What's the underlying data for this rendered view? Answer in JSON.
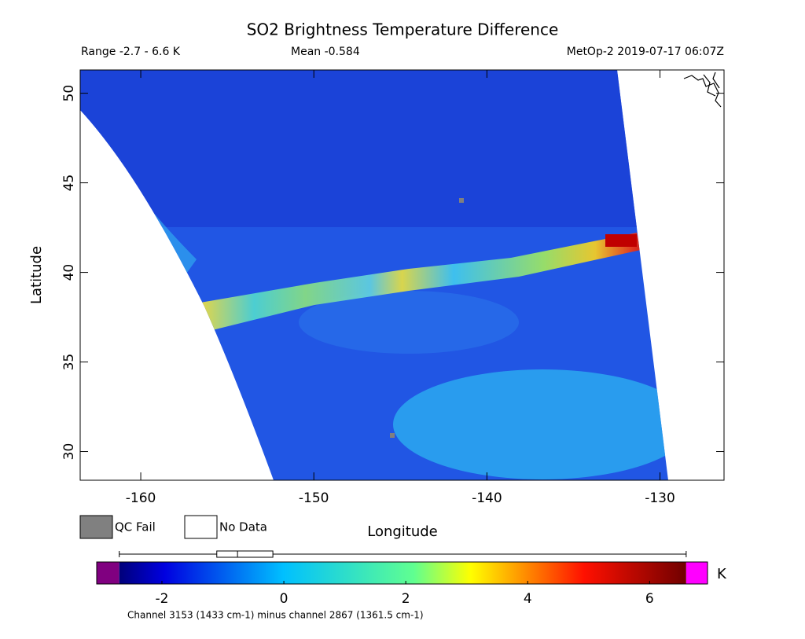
{
  "title": "SO2 Brightness Temperature Difference",
  "range_label": "Range -2.7 - 6.6 K",
  "mean_label": "Mean -0.584",
  "satellite_label": "MetOp-2 2019-07-17 06:07Z",
  "map": {
    "xlabel": "Longitude",
    "ylabel": "Latitude",
    "xlim": [
      -163.5,
      -126.3
    ],
    "ylim": [
      28.4,
      51.3
    ],
    "xticks": [
      -160,
      -150,
      -140,
      -130
    ],
    "yticks": [
      30,
      35,
      40,
      45,
      50
    ]
  },
  "legend": [
    {
      "label": "QC Fail",
      "color": "#808080"
    },
    {
      "label": "No Data",
      "color": "#ffffff"
    }
  ],
  "colorbar": {
    "unit": "K",
    "lim": [
      -3.07,
      6.95
    ],
    "data_range": [
      -2.7,
      6.6
    ],
    "under_color": "#800080",
    "over_color": "#ff00ff",
    "ticks": [
      -2,
      0,
      2,
      4,
      6
    ],
    "note": "Channel 3153 (1433 cm-1) minus channel 2867 (1361.5 cm-1)"
  },
  "boxplot": {
    "min": -2.7,
    "q1": -1.1,
    "median": -0.76,
    "q3": -0.18,
    "max": 6.6
  }
}
